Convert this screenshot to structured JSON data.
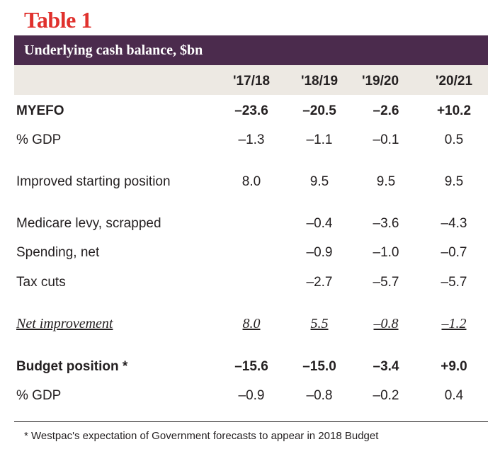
{
  "title": "Table 1",
  "subtitle": "Underlying cash balance, $bn",
  "columns": [
    "'17/18",
    "'18/19",
    "'19/20",
    "'20/21"
  ],
  "rows": [
    {
      "label": "MYEFO",
      "values": [
        "–23.6",
        "–20.5",
        "–2.6",
        "+10.2"
      ]
    },
    {
      "label": "% GDP",
      "values": [
        "–1.3",
        "–1.1",
        "–0.1",
        "0.5"
      ]
    },
    {
      "label": "Improved starting position",
      "values": [
        "8.0",
        "9.5",
        "9.5",
        "9.5"
      ]
    },
    {
      "label": "Medicare levy, scrapped",
      "values": [
        "",
        "–0.4",
        "–3.6",
        "–4.3"
      ]
    },
    {
      "label": "Spending, net",
      "values": [
        "",
        "–0.9",
        "–1.0",
        "–0.7"
      ]
    },
    {
      "label": "Tax cuts",
      "values": [
        "",
        "–2.7",
        "–5.7",
        "–5.7"
      ]
    },
    {
      "label": "Net improvement",
      "values": [
        "8.0",
        "5.5",
        "–0.8",
        "–1.2"
      ]
    },
    {
      "label": "Budget position *",
      "values": [
        "–15.6",
        "–15.0",
        "–3.4",
        "+9.0"
      ]
    },
    {
      "label": "% GDP",
      "values": [
        "–0.9",
        "–0.8",
        "–0.2",
        "0.4"
      ]
    }
  ],
  "footnote": "* Westpac's expectation of Government forecasts to appear in 2018 Budget",
  "colors": {
    "title": "#e0312d",
    "header_band": "#4b2b4d",
    "column_band": "#ede9e3"
  }
}
